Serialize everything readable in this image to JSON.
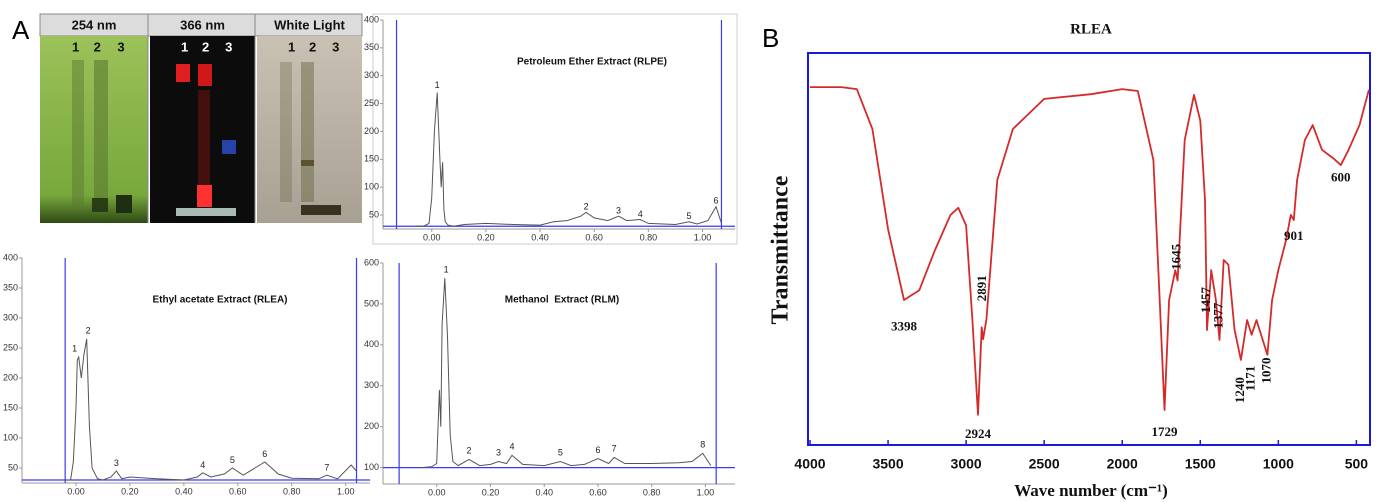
{
  "panel_labels": [
    "A",
    "B"
  ],
  "tlc_image": {
    "panels": [
      {
        "label": "254 nm",
        "lanes": [
          "1",
          "2",
          "3"
        ]
      },
      {
        "label": "366 nm",
        "lanes": [
          "1",
          "2",
          "3"
        ]
      },
      {
        "label": "White Light",
        "lanes": [
          "1",
          "2",
          "3"
        ]
      }
    ]
  },
  "chart_data": [
    {
      "type": "line",
      "title": "Petroleum Ether Extract (RLPE)",
      "color": "#555555",
      "guide_color": "#3a3aee",
      "x": [
        -0.06,
        -0.03,
        -0.01,
        0.0,
        0.01,
        0.02,
        0.03,
        0.035,
        0.04,
        0.045,
        0.05,
        0.06,
        0.08,
        0.12,
        0.2,
        0.3,
        0.4,
        0.45,
        0.5,
        0.55,
        0.57,
        0.6,
        0.65,
        0.69,
        0.72,
        0.77,
        0.8,
        0.9,
        0.95,
        0.98,
        1.02,
        1.05,
        1.07
      ],
      "values": [
        30,
        30,
        35,
        80,
        200,
        270,
        150,
        100,
        145,
        60,
        38,
        32,
        30,
        33,
        35,
        33,
        32,
        38,
        40,
        48,
        55,
        45,
        40,
        48,
        40,
        42,
        35,
        33,
        38,
        34,
        40,
        65,
        35
      ],
      "xlim": [
        -0.18,
        1.12
      ],
      "ylim": [
        25,
        400
      ],
      "xticks": [
        {
          "value": 0,
          "label": "0.00"
        },
        {
          "value": 0.2,
          "label": "0.20"
        },
        {
          "value": 0.4,
          "label": "0.40"
        },
        {
          "value": 0.6,
          "label": "0.60"
        },
        {
          "value": 0.8,
          "label": "0.80"
        },
        {
          "value": 1,
          "label": "1.00"
        }
      ],
      "yticks": [
        50,
        100,
        150,
        200,
        250,
        300,
        350,
        400
      ],
      "baseline": 30,
      "vlines": [
        -0.13,
        1.07
      ],
      "annotations": [
        {
          "label": "1",
          "x": 0.02,
          "y": 282
        },
        {
          "label": "2",
          "x": 0.57,
          "y": 64
        },
        {
          "label": "3",
          "x": 0.69,
          "y": 57
        },
        {
          "label": "4",
          "x": 0.77,
          "y": 51
        },
        {
          "label": "5",
          "x": 0.95,
          "y": 47
        },
        {
          "label": "6",
          "x": 1.05,
          "y": 75
        }
      ]
    },
    {
      "type": "line",
      "title": "Ethyl acetate Extract (RLEA)",
      "color": "#555555",
      "guide_color": "#3a3aee",
      "x": [
        -0.04,
        -0.02,
        -0.01,
        0.0,
        0.005,
        0.01,
        0.02,
        0.03,
        0.04,
        0.05,
        0.06,
        0.08,
        0.1,
        0.13,
        0.15,
        0.17,
        0.2,
        0.3,
        0.4,
        0.45,
        0.47,
        0.5,
        0.55,
        0.58,
        0.62,
        0.7,
        0.75,
        0.8,
        0.9,
        0.93,
        0.97,
        1.02,
        1.04
      ],
      "values": [
        30,
        30,
        60,
        150,
        230,
        235,
        200,
        240,
        265,
        120,
        50,
        32,
        30,
        35,
        45,
        32,
        35,
        32,
        30,
        35,
        42,
        35,
        40,
        50,
        38,
        60,
        40,
        33,
        32,
        38,
        32,
        55,
        45
      ],
      "xlim": [
        -0.2,
        1.09
      ],
      "ylim": [
        25,
        400
      ],
      "xticks": [
        {
          "value": 0,
          "label": "0.00"
        },
        {
          "value": 0.2,
          "label": "0.20"
        },
        {
          "value": 0.4,
          "label": "0.40"
        },
        {
          "value": 0.6,
          "label": "0.60"
        },
        {
          "value": 0.8,
          "label": "0.80"
        },
        {
          "value": 1,
          "label": "1.00"
        }
      ],
      "yticks": [
        50,
        100,
        150,
        200,
        250,
        300,
        350,
        400
      ],
      "baseline": 30,
      "vlines": [
        -0.04,
        1.04
      ],
      "annotations": [
        {
          "label": "1",
          "x": -0.005,
          "y": 248
        },
        {
          "label": "2",
          "x": 0.045,
          "y": 278
        },
        {
          "label": "3",
          "x": 0.15,
          "y": 57
        },
        {
          "label": "4",
          "x": 0.47,
          "y": 54
        },
        {
          "label": "5",
          "x": 0.58,
          "y": 62
        },
        {
          "label": "6",
          "x": 0.7,
          "y": 72
        },
        {
          "label": "7",
          "x": 0.93,
          "y": 50
        }
      ]
    },
    {
      "type": "line",
      "title": "Methanol  Extract (RLM)",
      "color": "#555555",
      "guide_color": "#3a3aee",
      "x": [
        -0.06,
        -0.02,
        0.0,
        0.01,
        0.015,
        0.02,
        0.03,
        0.04,
        0.05,
        0.06,
        0.08,
        0.12,
        0.16,
        0.2,
        0.23,
        0.26,
        0.28,
        0.32,
        0.4,
        0.46,
        0.5,
        0.55,
        0.6,
        0.64,
        0.66,
        0.7,
        0.8,
        0.9,
        0.95,
        0.99,
        1.02
      ],
      "values": [
        100,
        102,
        110,
        290,
        200,
        450,
        563,
        420,
        180,
        115,
        105,
        120,
        105,
        108,
        115,
        110,
        130,
        108,
        105,
        115,
        105,
        108,
        122,
        110,
        125,
        110,
        110,
        112,
        115,
        135,
        105
      ],
      "xlim": [
        -0.2,
        1.11
      ],
      "ylim": [
        60,
        600
      ],
      "xticks": [
        {
          "value": 0,
          "label": "0.00"
        },
        {
          "value": 0.2,
          "label": "0.20"
        },
        {
          "value": 0.4,
          "label": "0.40"
        },
        {
          "value": 0.6,
          "label": "0.60"
        },
        {
          "value": 0.8,
          "label": "0.80"
        },
        {
          "value": 1,
          "label": "1.00"
        }
      ],
      "yticks": [
        100,
        200,
        300,
        400,
        500,
        600
      ],
      "baseline": 100,
      "vlines": [
        -0.14,
        1.04
      ],
      "annotations": [
        {
          "label": "1",
          "x": 0.035,
          "y": 582
        },
        {
          "label": "2",
          "x": 0.12,
          "y": 140
        },
        {
          "label": "3",
          "x": 0.23,
          "y": 135
        },
        {
          "label": "4",
          "x": 0.28,
          "y": 150
        },
        {
          "label": "5",
          "x": 0.46,
          "y": 135
        },
        {
          "label": "6",
          "x": 0.6,
          "y": 142
        },
        {
          "label": "7",
          "x": 0.66,
          "y": 145
        },
        {
          "label": "8",
          "x": 0.99,
          "y": 155
        }
      ]
    },
    {
      "type": "spectrum",
      "title": "RLEA",
      "x_label": "Wave number (cm⁻¹)",
      "y_label": "Transmittance",
      "color": "#d62a2a",
      "frame_color": "#1a1ad6",
      "x": [
        4000,
        3800,
        3700,
        3600,
        3500,
        3398,
        3300,
        3200,
        3100,
        3050,
        3000,
        2960,
        2924,
        2900,
        2891,
        2870,
        2850,
        2800,
        2700,
        2500,
        2200,
        2000,
        1900,
        1800,
        1760,
        1729,
        1700,
        1660,
        1645,
        1600,
        1540,
        1500,
        1470,
        1457,
        1430,
        1400,
        1377,
        1350,
        1320,
        1280,
        1240,
        1200,
        1171,
        1140,
        1100,
        1070,
        1040,
        1000,
        950,
        920,
        901,
        880,
        830,
        780,
        720,
        650,
        600,
        550,
        480,
        420
      ],
      "values": [
        91.3,
        91.3,
        90.8,
        80.6,
        55,
        37,
        39.5,
        49.7,
        58.7,
        60.5,
        56,
        31.9,
        7.7,
        30,
        27,
        32,
        42.1,
        67.6,
        80.6,
        88.3,
        89.5,
        90.8,
        90.3,
        72.7,
        37,
        8.9,
        37,
        44.6,
        42,
        77.8,
        89.3,
        82.7,
        62.5,
        29.3,
        44.6,
        37,
        26.8,
        47.2,
        46,
        29.3,
        21.7,
        31.9,
        28.1,
        31.9,
        26.8,
        23,
        37,
        44.6,
        52.3,
        58.7,
        57.4,
        67.6,
        77.8,
        81.6,
        75.3,
        73.2,
        71.4,
        75.3,
        81.6,
        90.6
      ],
      "xlim": [
        4000,
        400
      ],
      "ylim": [
        0,
        100
      ],
      "xticks": [
        4000,
        3500,
        3000,
        2500,
        2000,
        1500,
        1000,
        500
      ],
      "annotations": [
        {
          "x": 3398,
          "y": 30,
          "vertical": false
        },
        {
          "x": 2924,
          "y": 2.5,
          "vertical": false
        },
        {
          "x": 2891,
          "y": 40,
          "vertical": true
        },
        {
          "x": 1729,
          "y": 3,
          "vertical": false
        },
        {
          "x": 1645,
          "y": 48,
          "vertical": true
        },
        {
          "x": 1457,
          "y": 37,
          "vertical": true
        },
        {
          "x": 1377,
          "y": 33,
          "vertical": true
        },
        {
          "x": 1240,
          "y": 14,
          "vertical": true
        },
        {
          "x": 1171,
          "y": 17,
          "vertical": true
        },
        {
          "x": 1070,
          "y": 19,
          "vertical": true
        },
        {
          "x": 901,
          "y": 53,
          "vertical": false
        },
        {
          "x": 600,
          "y": 68,
          "vertical": false
        }
      ]
    }
  ]
}
